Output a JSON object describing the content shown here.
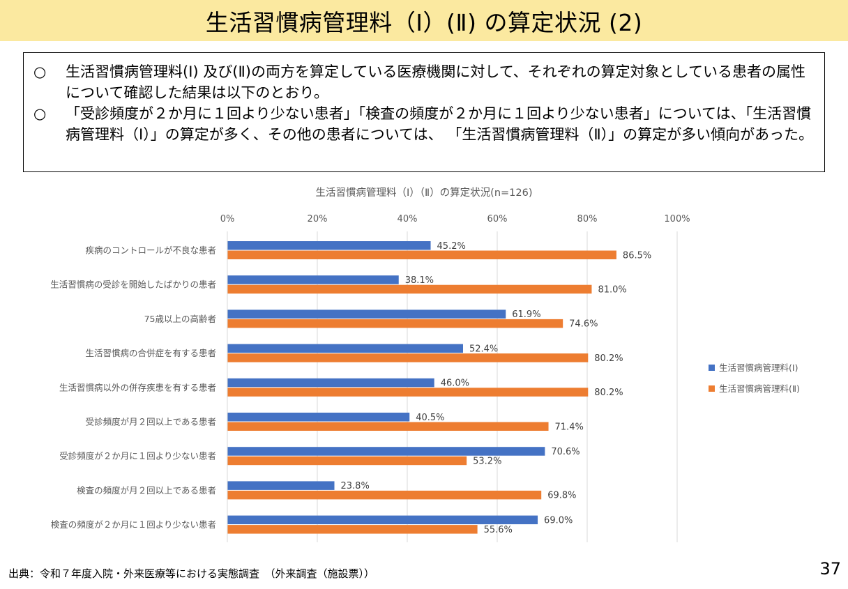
{
  "title": "生活習慣病管理料（Ⅰ）(Ⅱ) の算定状況 (2)",
  "summary": [
    {
      "mark": "○",
      "text": "生活習慣病管理料(Ⅰ) 及び(Ⅱ)の両方を算定している医療機関に対して、それぞれの算定対象としている患者の属性について確認した結果は以下のとおり。"
    },
    {
      "mark": "○",
      "text": "「受診頻度が２か月に１回より少ない患者」「検査の頻度が２か月に１回より少ない患者」については、「生活習慣病管理料（Ⅰ）」の算定が多く、その他の患者については、 「生活習慣病管理料（Ⅱ）」の算定が多い傾向があった。"
    }
  ],
  "chart_data": {
    "type": "bar",
    "orientation": "horizontal",
    "title": "生活習慣病管理料（Ⅰ）（Ⅱ）の算定状況(n=126)",
    "categories": [
      "疾病のコントロールが不良な患者",
      "生活習慣病の受診を開始したばかりの患者",
      "75歳以上の高齢者",
      "生活習慣病の合併症を有する患者",
      "生活習慣病以外の併存疾患を有する患者",
      "受診頻度が月２回以上である患者",
      "受診頻度が２か月に１回より少ない患者",
      "検査の頻度が月２回以上である患者",
      "検査の頻度が２か月に１回より少ない患者"
    ],
    "series": [
      {
        "name": "生活習慣病管理料(Ⅰ)",
        "color": "#4472c4",
        "values": [
          45.2,
          38.1,
          61.9,
          52.4,
          46.0,
          40.5,
          70.6,
          23.8,
          69.0
        ]
      },
      {
        "name": "生活習慣病管理料(Ⅱ)",
        "color": "#ed7d31",
        "values": [
          86.5,
          81.0,
          74.6,
          80.2,
          80.2,
          71.4,
          53.2,
          69.8,
          55.6
        ]
      }
    ],
    "xlim": [
      0,
      100
    ],
    "x_ticks": [
      "0%",
      "20%",
      "40%",
      "60%",
      "80%",
      "100%"
    ],
    "value_suffix": "%",
    "grid": true,
    "legend_position": "right"
  },
  "footer": {
    "source": "出典：令和７年度入院・外来医療等における実態調査　（外来調査（施設票））",
    "page": "37"
  }
}
